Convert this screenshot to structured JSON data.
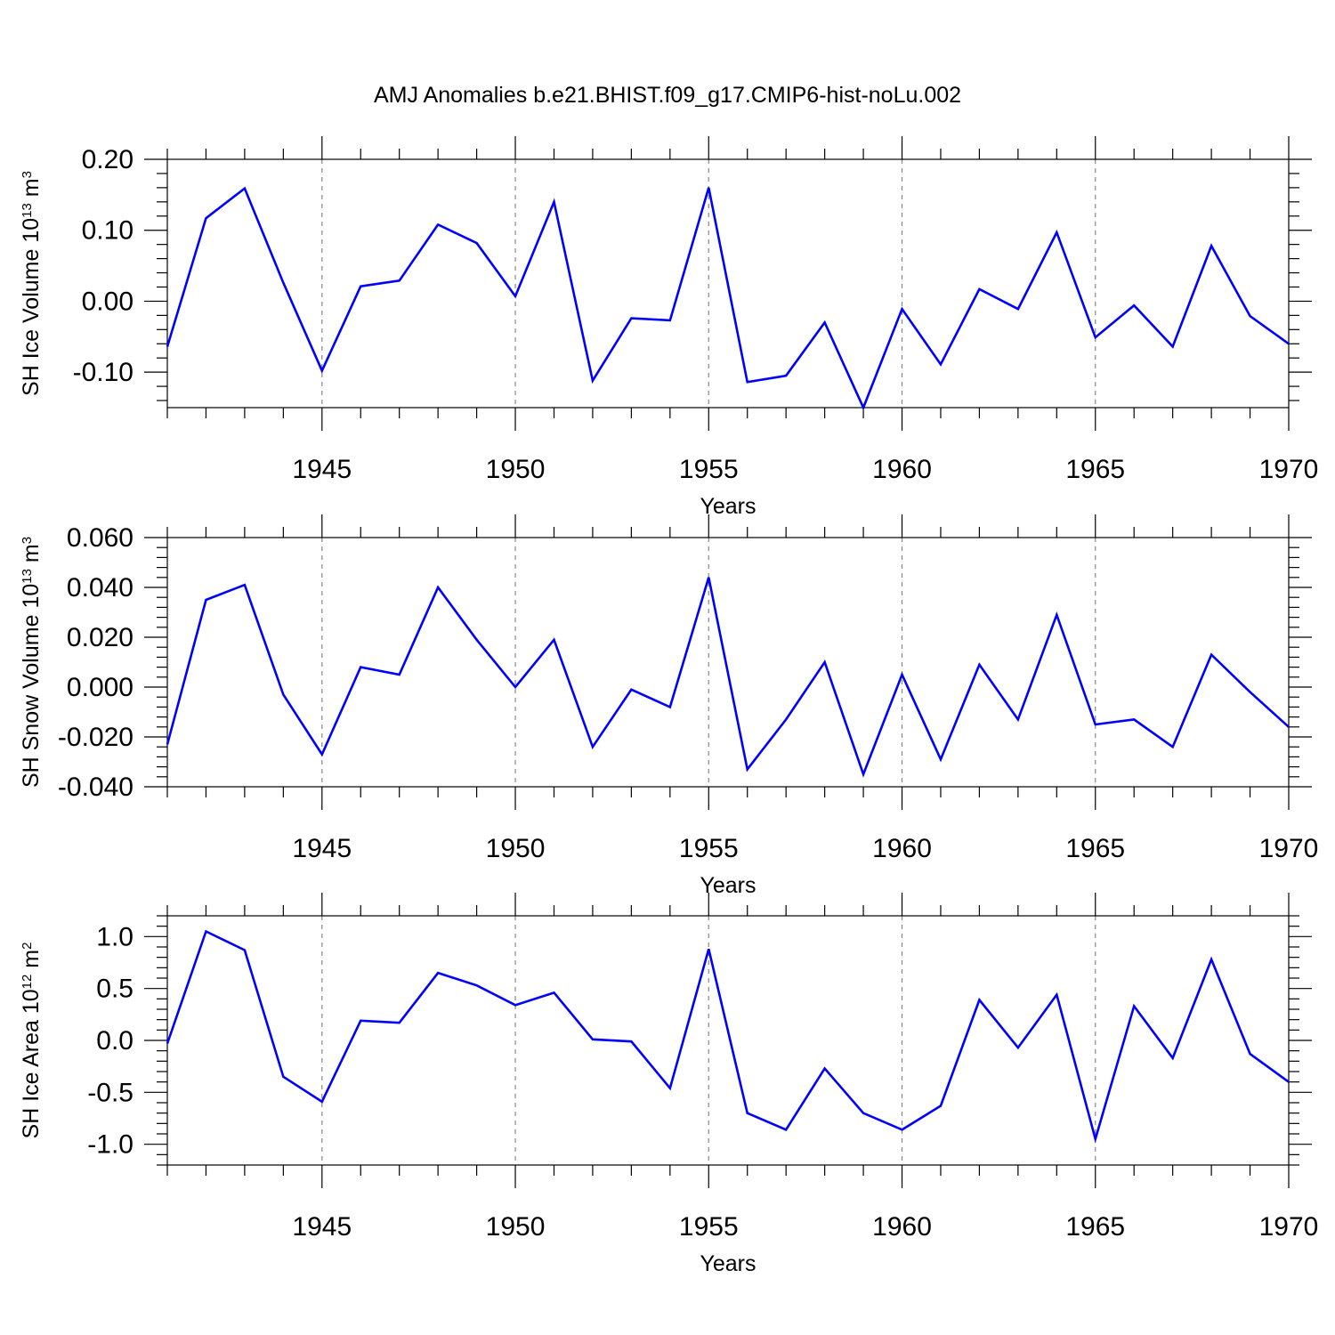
{
  "title": "AMJ Anomalies b.e21.BHIST.f09_g17.CMIP6-hist-noLu.002",
  "colors": {
    "line": "#0000ff",
    "axis": "#000000",
    "grid": "#888888"
  },
  "chart_data": [
    {
      "type": "line",
      "ylabel_main": "SH Ice Volume 10",
      "ylabel_exp": "13",
      "ylabel_unit": " m",
      "ylabel_unit_exp": "3",
      "xlabel": "Years",
      "xlim": [
        1941,
        1970
      ],
      "ylim": [
        -0.15,
        0.2
      ],
      "yticks": [
        0.2,
        0.1,
        0.0,
        -0.1
      ],
      "yticklabels": [
        "0.20",
        "0.10",
        "0.00",
        "-0.10"
      ],
      "xticks": [
        1945,
        1950,
        1955,
        1960,
        1965,
        1970
      ],
      "xticklabels": [
        "1945",
        "1950",
        "1955",
        "1960",
        "1965",
        "1970"
      ],
      "grid_x": [
        1945,
        1950,
        1955,
        1960,
        1965
      ],
      "x": [
        1941,
        1942,
        1943,
        1944,
        1945,
        1946,
        1947,
        1948,
        1949,
        1950,
        1951,
        1952,
        1953,
        1954,
        1955,
        1956,
        1957,
        1958,
        1959,
        1960,
        1961,
        1962,
        1963,
        1964,
        1965,
        1966,
        1967,
        1968,
        1969,
        1970
      ],
      "values": [
        -0.064,
        0.117,
        0.159,
        0.026,
        -0.098,
        0.021,
        0.029,
        0.108,
        0.082,
        0.007,
        0.14,
        -0.112,
        -0.024,
        -0.027,
        0.16,
        -0.114,
        -0.105,
        -0.03,
        -0.15,
        -0.011,
        -0.089,
        0.017,
        -0.011,
        0.097,
        -0.051,
        -0.006,
        -0.064,
        0.078,
        -0.021,
        -0.06
      ]
    },
    {
      "type": "line",
      "ylabel_main": "SH Snow Volume 10",
      "ylabel_exp": "13",
      "ylabel_unit": " m",
      "ylabel_unit_exp": "3",
      "xlabel": "Years",
      "xlim": [
        1941,
        1970
      ],
      "ylim": [
        -0.04,
        0.06
      ],
      "yticks": [
        0.06,
        0.04,
        0.02,
        0.0,
        -0.02,
        -0.04
      ],
      "yticklabels": [
        "0.060",
        "0.040",
        "0.020",
        "0.000",
        "-0.020",
        "-0.040"
      ],
      "xticks": [
        1945,
        1950,
        1955,
        1960,
        1965,
        1970
      ],
      "xticklabels": [
        "1945",
        "1950",
        "1955",
        "1960",
        "1965",
        "1970"
      ],
      "grid_x": [
        1945,
        1950,
        1955,
        1960,
        1965
      ],
      "x": [
        1941,
        1942,
        1943,
        1944,
        1945,
        1946,
        1947,
        1948,
        1949,
        1950,
        1951,
        1952,
        1953,
        1954,
        1955,
        1956,
        1957,
        1958,
        1959,
        1960,
        1961,
        1962,
        1963,
        1964,
        1965,
        1966,
        1967,
        1968,
        1969,
        1970
      ],
      "values": [
        -0.023,
        0.035,
        0.041,
        -0.003,
        -0.027,
        0.008,
        0.005,
        0.04,
        0.019,
        0.0,
        0.019,
        -0.024,
        -0.001,
        -0.008,
        0.044,
        -0.033,
        -0.013,
        0.01,
        -0.035,
        0.005,
        -0.029,
        0.009,
        -0.013,
        0.029,
        -0.015,
        -0.013,
        -0.024,
        0.013,
        -0.002,
        -0.016
      ]
    },
    {
      "type": "line",
      "ylabel_main": "SH Ice Area 10",
      "ylabel_exp": "12",
      "ylabel_unit": " m",
      "ylabel_unit_exp": "2",
      "xlabel": "Years",
      "xlim": [
        1941,
        1970
      ],
      "ylim": [
        -1.2,
        1.2
      ],
      "yticks": [
        1.0,
        0.5,
        0.0,
        -0.5,
        -1.0
      ],
      "yticklabels": [
        "1.0",
        "0.5",
        "0.0",
        "-0.5",
        "-1.0"
      ],
      "xticks": [
        1945,
        1950,
        1955,
        1960,
        1965,
        1970
      ],
      "xticklabels": [
        "1945",
        "1950",
        "1955",
        "1960",
        "1965",
        "1970"
      ],
      "grid_x": [
        1945,
        1950,
        1955,
        1960,
        1965
      ],
      "x": [
        1941,
        1942,
        1943,
        1944,
        1945,
        1946,
        1947,
        1948,
        1949,
        1950,
        1951,
        1952,
        1953,
        1954,
        1955,
        1956,
        1957,
        1958,
        1959,
        1960,
        1961,
        1962,
        1963,
        1964,
        1965,
        1966,
        1967,
        1968,
        1969,
        1970
      ],
      "values": [
        -0.03,
        1.05,
        0.87,
        -0.35,
        -0.59,
        0.19,
        0.17,
        0.65,
        0.53,
        0.34,
        0.46,
        0.01,
        -0.01,
        -0.46,
        0.88,
        -0.7,
        -0.86,
        -0.27,
        -0.7,
        -0.86,
        -0.63,
        0.39,
        -0.07,
        0.44,
        -0.95,
        0.33,
        -0.17,
        0.78,
        -0.13,
        -0.4
      ]
    }
  ]
}
